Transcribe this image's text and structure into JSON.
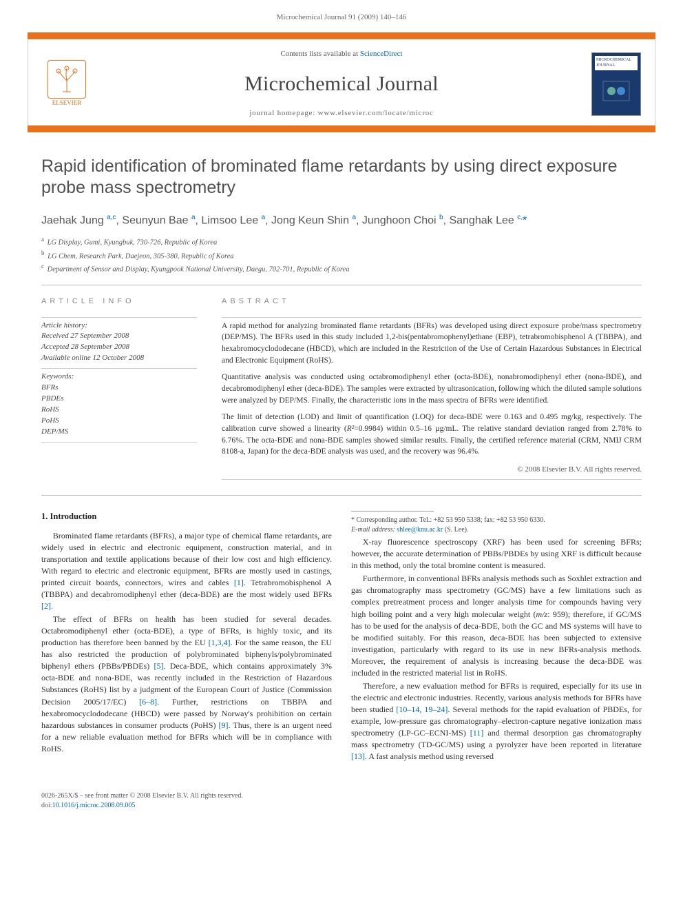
{
  "running_head": "Microchemical Journal 91 (2009) 140–146",
  "masthead": {
    "contents_prefix": "Contents lists available at ",
    "contents_link": "ScienceDirect",
    "journal_title": "Microchemical Journal",
    "homepage_prefix": "journal homepage: ",
    "homepage_url": "www.elsevier.com/locate/microc",
    "publisher_logo_label": "ELSEVIER",
    "cover_label": "MICROCHEMICAL JOURNAL"
  },
  "article": {
    "title": "Rapid identification of brominated flame retardants by using direct exposure probe mass spectrometry",
    "authors_html": "Jaehak Jung <sup>a,c</sup>, Seunyun Bae <sup>a</sup>, Limsoo Lee <sup>a</sup>, Jong Keun Shin <sup>a</sup>, Junghoon Choi <sup>b</sup>, Sanghak Lee <sup>c,</sup><span class='star'>*</span>",
    "affiliations": {
      "a": "LG Display, Gumi, Kyungbuk, 730-726, Republic of Korea",
      "b": "LG Chem, Research Park, Daejeon, 305-380, Republic of Korea",
      "c": "Department of Sensor and Display, Kyungpook National University, Daegu, 702-701, Republic of Korea"
    }
  },
  "article_info": {
    "heading": "ARTICLE INFO",
    "history_label": "Article history:",
    "received": "Received 27 September 2008",
    "accepted": "Accepted 28 September 2008",
    "online": "Available online 12 October 2008",
    "keywords_label": "Keywords:",
    "keywords": [
      "BFRs",
      "PBDEs",
      "RoHS",
      "PoHS",
      "DEP/MS"
    ]
  },
  "abstract": {
    "heading": "ABSTRACT",
    "p1": "A rapid method for analyzing brominated flame retardants (BFRs) was developed using direct exposure probe/mass spectrometry (DEP/MS). The BFRs used in this study included 1,2-bis(pentabromophenyl)ethane (EBP), tetrabromobisphenol A (TBBPA), and hexabromocyclododecane (HBCD), which are included in the Restriction of the Use of Certain Hazardous Substances in Electrical and Electronic Equipment (RoHS).",
    "p2": "Quantitative analysis was conducted using octabromodiphenyl ether (octa-BDE), nonabromodiphenyl ether (nona-BDE), and decabromodiphenyl ether (deca-BDE). The samples were extracted by ultrasonication, following which the diluted sample solutions were analyzed by DEP/MS. Finally, the characteristic ions in the mass spectra of BFRs were identified.",
    "p3_pre": "The limit of detection (LOD) and limit of quantification (LOQ) for deca-BDE were 0.163 and 0.495 mg/kg, respectively. The calibration curve showed a linearity (",
    "p3_r2": "R²",
    "p3_mid": "=0.9984) within 0.5–16 µg/mL. The relative standard deviation ranged from 2.78% to 6.76%. The octa-BDE and nona-BDE samples showed similar results. Finally, the certified reference material (CRM, NMIJ CRM 8108-a, Japan) for the deca-BDE analysis was used, and the recovery was 96.4%.",
    "copyright": "© 2008 Elsevier B.V. All rights reserved."
  },
  "body": {
    "intro_heading": "1. Introduction",
    "para1": "Brominated flame retardants (BFRs), a major type of chemical flame retardants, are widely used in electric and electronic equipment, construction material, and in transportation and textile applications because of their low cost and high efficiency. With regard to electric and electronic equipment, BFRs are mostly used in castings, printed circuit boards, connectors, wires and cables ",
    "ref1": "[1]",
    "para1b": ". Tetrabromobisphenol A (TBBPA) and decabromodiphenyl ether (deca-BDE) are the most widely used BFRs ",
    "ref2": "[2]",
    "para1c": ".",
    "para2a": "The effect of BFRs on health has been studied for several decades. Octabromodiphenyl ether (octa-BDE), a type of BFRs, is highly toxic, and its production has therefore been banned by the EU ",
    "ref134": "[1,3,4]",
    "para2b": ". For the same reason, the EU has also restricted the production of polybrominated biphenyls/polybrominated biphenyl ethers (PBBs/PBDEs) ",
    "ref5": "[5]",
    "para2c": ". Deca-BDE, which contains approximately 3% octa-BDE and nona-BDE, was recently included in the Restriction of Hazardous Substances (RoHS) list by a judgment of the European Court of Justice (Commission Decision 2005/17/EC) ",
    "ref68": "[6–8]",
    "para2d": ". Further, restrictions on TBBPA and hexabromocyclododecane (HBCD) were passed by Norway's prohibition on certain hazardous substances in consumer products (PoHS) ",
    "ref9": "[9]",
    "para2e": ". Thus, there is an urgent need for a new reliable evaluation method for BFRs which will be in compliance with RoHS.",
    "para3": "X-ray fluorescence spectroscopy (XRF) has been used for screening BFRs; however, the accurate determination of PBBs/PBDEs by using XRF is difficult because in this method, only the total bromine content is measured.",
    "para4a": "Furthermore, in conventional BFRs analysis methods such as Soxhlet extraction and gas chromatography mass spectrometry (GC/MS) have a few limitations such as complex pretreatment process and longer analysis time for compounds having very high boiling point and a very high molecular weight (",
    "mz": "m/z",
    "para4b": ": 959); therefore, if GC/MS has to be used for the analysis of deca-BDE, both the GC and MS systems will have to be modified suitably. For this reason, deca-BDE has been subjected to extensive investigation, particularly with regard to its use in new BFRs-analysis methods. Moreover, the requirement of analysis is increasing because the deca-BDE was included in the restricted material list in RoHS.",
    "para5a": "Therefore, a new evaluation method for BFRs is required, especially for its use in the electric and electronic industries. Recently, various analysis methods for BFRs have been studied ",
    "ref1014": "[10–14, 19–24]",
    "para5b": ". Several methods for the rapid evaluation of PBDEs, for example, low-pressure gas chromatography–electron-capture negative ionization mass spectrometry (LP-GC–ECNI-MS) ",
    "ref11": "[11]",
    "para5c": " and thermal desorption gas chromatography mass spectrometry (TD-GC/MS) using a pyrolyzer have been reported in literature ",
    "ref13": "[13]",
    "para5d": ". A fast analysis method using reversed"
  },
  "footnote": {
    "corr": "* Corresponding author. Tel.: +82 53 950 5338; fax: +82 53 950 6330.",
    "email_label": "E-mail address: ",
    "email": "shlee@knu.ac.kr",
    "email_who": " (S. Lee)."
  },
  "footer": {
    "left1": "0026-265X/$ – see front matter © 2008 Elsevier B.V. All rights reserved.",
    "doi_label": "doi:",
    "doi": "10.1016/j.microc.2008.09.005"
  },
  "colors": {
    "accent": "#e9711c",
    "link": "#0066aa",
    "text": "#333333",
    "muted": "#666666",
    "cover_bg": "#1a3a6e"
  }
}
